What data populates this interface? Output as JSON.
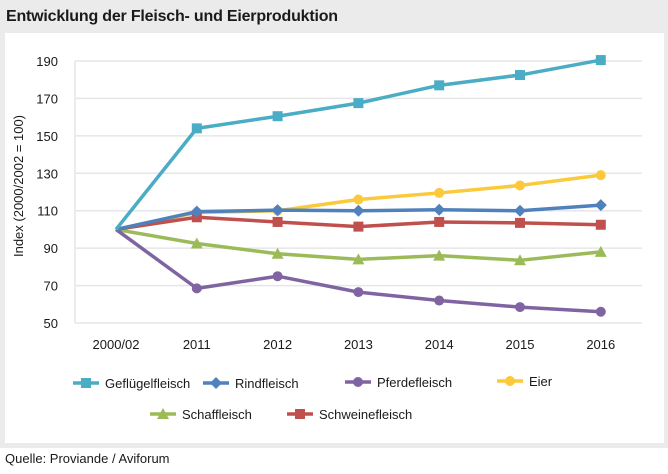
{
  "header": {
    "title": "Entwicklung der Fleisch- und Eierproduktion"
  },
  "footer": {
    "source": "Quelle:  Proviande / Aviforum"
  },
  "chart_data": {
    "type": "line",
    "title": "Entwicklung der Fleisch- und Eierproduktion",
    "xlabel": "",
    "ylabel": "Index (2000/2002 = 100)",
    "ylim": [
      50,
      190
    ],
    "yticks": [
      50,
      70,
      90,
      110,
      130,
      150,
      170,
      190
    ],
    "grid": true,
    "legend_position": "bottom",
    "categories": [
      "2000/02",
      "2011",
      "2012",
      "2013",
      "2014",
      "2015",
      "2016"
    ],
    "series": [
      {
        "name": "Geflügelfleisch",
        "color": "#4bacc6",
        "marker": "square",
        "values": [
          100,
          154,
          160.5,
          167.5,
          177,
          182.5,
          190.5
        ]
      },
      {
        "name": "Rindfleisch",
        "color": "#4f81bd",
        "marker": "diamond",
        "values": [
          100,
          109.5,
          110.3,
          110,
          110.5,
          110,
          113
        ]
      },
      {
        "name": "Pferdefleisch",
        "color": "#8064a2",
        "marker": "circle",
        "values": [
          100,
          68.5,
          75,
          66.5,
          62,
          58.5,
          56
        ]
      },
      {
        "name": "Eier",
        "color": "#fcc93a",
        "marker": "circle",
        "values": [
          100,
          109,
          110,
          116,
          119.5,
          123.5,
          129
        ]
      },
      {
        "name": "Schaffleisch",
        "color": "#9bbb59",
        "marker": "triangle",
        "values": [
          100,
          92.5,
          87,
          84,
          86,
          83.5,
          88
        ]
      },
      {
        "name": "Schweinefleisch",
        "color": "#c0504d",
        "marker": "square",
        "values": [
          100,
          106.5,
          104,
          101.5,
          104,
          103.5,
          102.5
        ]
      }
    ]
  }
}
